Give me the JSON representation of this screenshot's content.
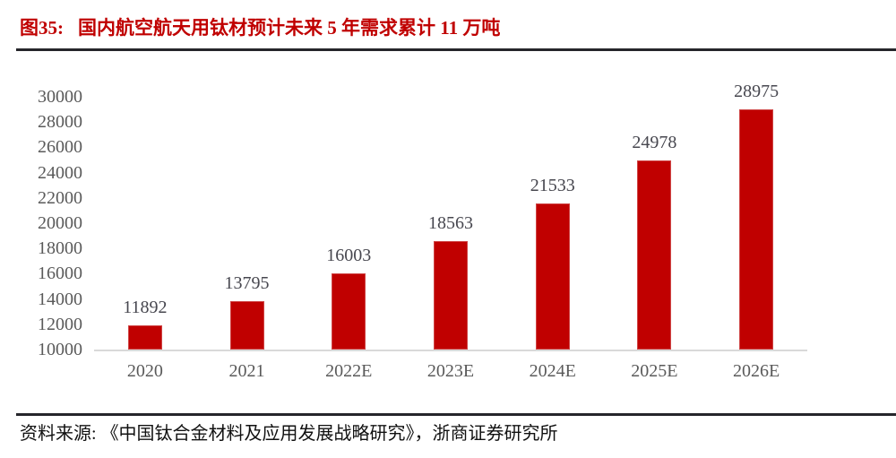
{
  "figure": {
    "label": "图35:",
    "title": "国内航空航天用钛材预计未来 5 年需求累计 11 万吨"
  },
  "source": {
    "prefix": "资料来源:",
    "text": "《中国钛合金材料及应用发展战略研究》，浙商证券研究所"
  },
  "colors": {
    "bar": "#c00000",
    "bar_border": "#cf4545",
    "title": "#c00000",
    "axis_tick_label": "#5a5a5a",
    "data_label": "#47474f",
    "axis_line": "#d9d9d9",
    "divider": "#26262b"
  },
  "chart_data": {
    "type": "bar",
    "title": "国内航空航天用钛材预计未来 5 年需求累计 11 万吨",
    "categories": [
      "2020",
      "2021",
      "2022E",
      "2023E",
      "2024E",
      "2025E",
      "2026E"
    ],
    "values": [
      11892,
      13795,
      16003,
      18563,
      21533,
      24978,
      28975
    ],
    "data_labels_shown": true,
    "xlabel": "",
    "ylabel": "",
    "ylim": [
      10000,
      30000
    ],
    "ytick_step": 2000,
    "yticks": [
      10000,
      12000,
      14000,
      16000,
      18000,
      20000,
      22000,
      24000,
      26000,
      28000,
      30000
    ],
    "grid": false,
    "legend": null
  }
}
